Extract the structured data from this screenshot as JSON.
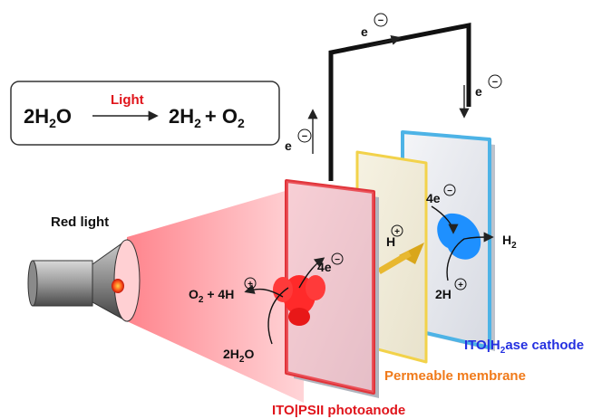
{
  "equation": {
    "reactant": "2H",
    "reactant_sub": "2",
    "reactant_tail": "O",
    "arrow_label": "Light",
    "product_a": "2H",
    "product_a_sub": "2",
    "plus": "+ O",
    "product_b_sub": "2"
  },
  "labels": {
    "red_light": "Red light",
    "photoanode": "ITO|PSII photoanode",
    "membrane": "Permeable membrane",
    "cathode_pre": "ITO|H",
    "cathode_sub": "2",
    "cathode_post": "ase cathode",
    "e_left": "e",
    "e_top": "e",
    "e_right": "e",
    "four_e_anode": "4e",
    "four_e_cathode": "4e",
    "o2_4h": "O",
    "o2_4h_sub": "2",
    "o2_4h_tail": " + 4H",
    "water_pre": "2H",
    "water_sub": "2",
    "water_post": "O",
    "h_plus": "H",
    "h2_pre": "H",
    "h2_sub": "2",
    "two_h": "2H",
    "minus_sign": "−",
    "plus_sign": "+"
  },
  "colors": {
    "anode_edge": "#e0343a",
    "membrane_edge": "#f2d24a",
    "cathode_edge": "#4db3e6",
    "psii": "#ff2a2a",
    "h2ase": "#1e90ff",
    "beam": "#ff9aa0",
    "label_red": "#e0141b",
    "label_orange": "#f07a1a",
    "label_blue": "#2430e0"
  }
}
